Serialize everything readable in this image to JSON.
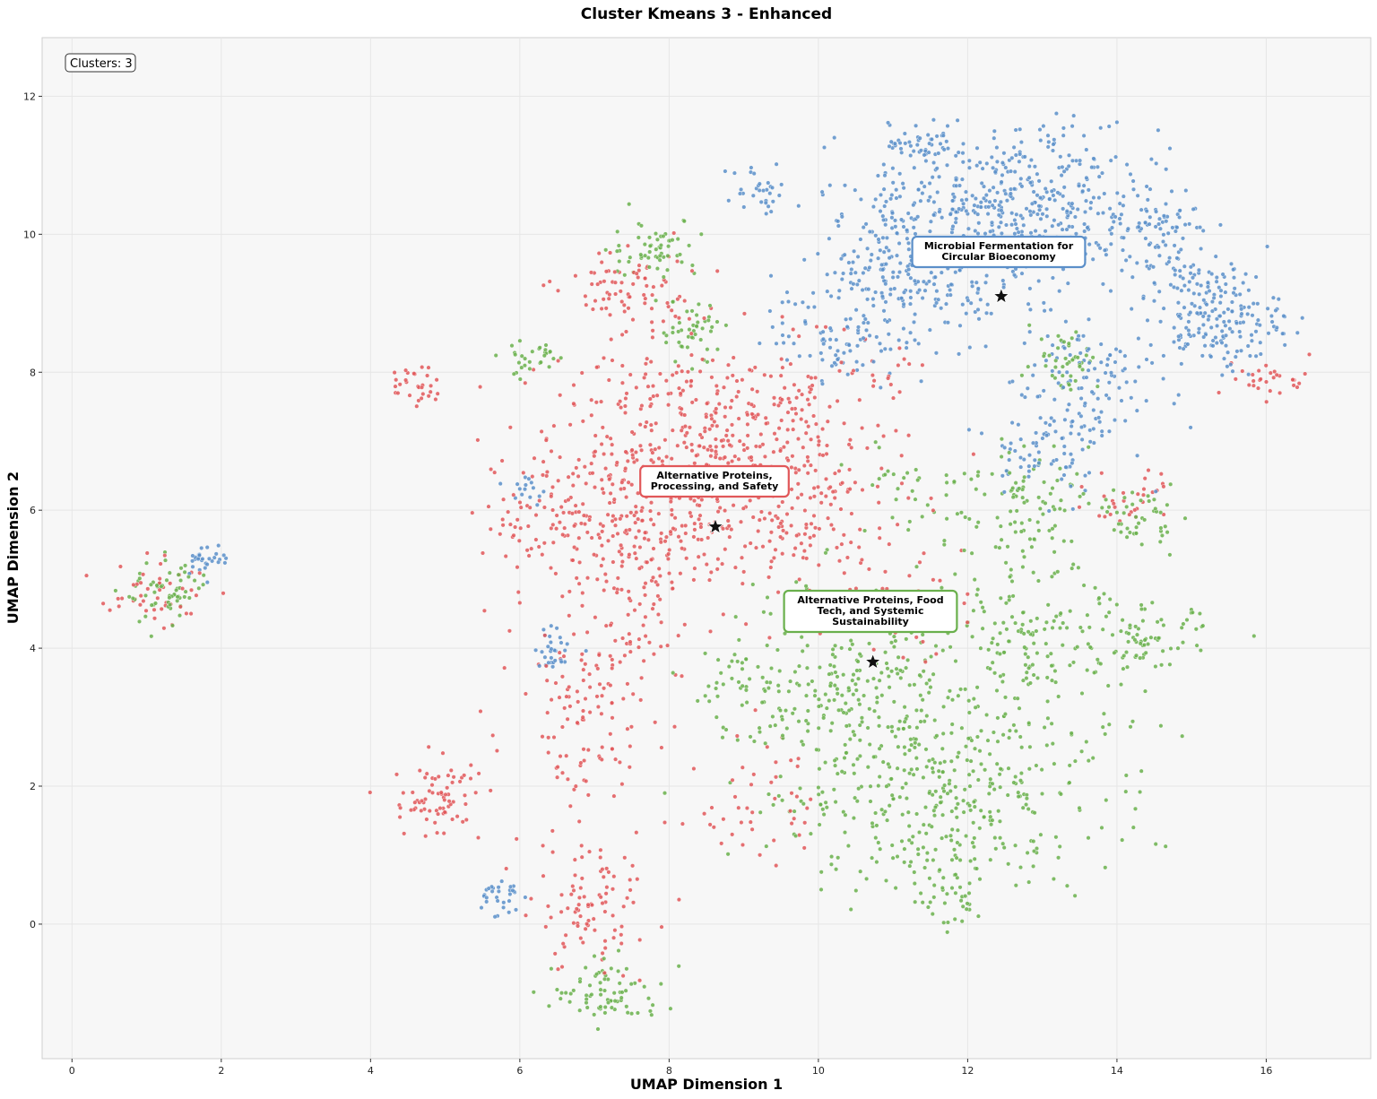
{
  "chart_data": {
    "type": "scatter",
    "title": "Cluster Kmeans 3 - Enhanced",
    "xlabel": "UMAP Dimension 1",
    "ylabel": "UMAP Dimension 2",
    "xlim": [
      -0.4,
      17.4
    ],
    "ylim": [
      -1.95,
      12.85
    ],
    "xticks": [
      "0",
      "2",
      "4",
      "6",
      "8",
      "10",
      "12",
      "14",
      "16"
    ],
    "yticks": [
      "0",
      "2",
      "4",
      "6",
      "8",
      "10",
      "12"
    ],
    "grid": true,
    "info_box": "Clusters: 3",
    "colors": {
      "red": "#e15759",
      "green": "#6ab04c",
      "blue": "#5b8fc9",
      "background": "#f7f7f7"
    },
    "series": [
      {
        "color": "#e15759",
        "centroid": [
          8.62,
          5.76
        ],
        "annotation": [
          "Alternative Proteins,",
          "Processing, and Safety"
        ],
        "regions": [
          [
            8.2,
            6.8,
            1.2,
            1.1,
            0.26
          ],
          [
            7.4,
            5.4,
            0.8,
            1.2,
            0.12
          ],
          [
            9.6,
            6.0,
            1.0,
            0.9,
            0.12
          ],
          [
            9.8,
            7.6,
            0.9,
            0.6,
            0.07
          ],
          [
            7.4,
            9.2,
            0.6,
            0.4,
            0.05
          ],
          [
            4.9,
            1.8,
            0.4,
            0.4,
            0.05
          ],
          [
            6.9,
            3.0,
            0.6,
            0.9,
            0.07
          ],
          [
            6.9,
            0.2,
            0.6,
            0.6,
            0.06
          ],
          [
            4.6,
            7.8,
            0.2,
            0.2,
            0.02
          ],
          [
            1.1,
            4.8,
            0.5,
            0.3,
            0.03
          ],
          [
            11.0,
            4.6,
            0.6,
            0.5,
            0.03
          ],
          [
            6.4,
            6.0,
            0.6,
            0.7,
            0.05
          ],
          [
            16.0,
            7.9,
            0.4,
            0.2,
            0.02
          ],
          [
            14.2,
            6.2,
            0.4,
            0.3,
            0.02
          ],
          [
            9.2,
            1.8,
            0.5,
            0.7,
            0.03
          ]
        ]
      },
      {
        "color": "#6ab04c",
        "centroid": [
          10.73,
          3.8
        ],
        "annotation": [
          "Alternative Proteins, Food",
          "Tech, and Systemic",
          "Sustainability"
        ],
        "regions": [
          [
            11.6,
            2.0,
            1.5,
            1.0,
            0.28
          ],
          [
            10.4,
            3.6,
            1.0,
            0.8,
            0.12
          ],
          [
            12.8,
            4.0,
            1.0,
            0.7,
            0.11
          ],
          [
            12.9,
            6.0,
            0.6,
            0.7,
            0.06
          ],
          [
            13.3,
            8.2,
            0.3,
            0.3,
            0.03
          ],
          [
            7.8,
            9.8,
            0.4,
            0.3,
            0.04
          ],
          [
            7.2,
            -1.0,
            0.5,
            0.3,
            0.05
          ],
          [
            1.3,
            4.8,
            0.4,
            0.3,
            0.04
          ],
          [
            14.3,
            5.9,
            0.3,
            0.3,
            0.03
          ],
          [
            8.3,
            8.6,
            0.3,
            0.3,
            0.03
          ],
          [
            14.5,
            4.1,
            0.5,
            0.3,
            0.04
          ],
          [
            9.0,
            3.4,
            0.5,
            0.5,
            0.03
          ],
          [
            11.8,
            0.4,
            0.4,
            0.4,
            0.03
          ],
          [
            6.2,
            8.2,
            0.3,
            0.2,
            0.02
          ],
          [
            11.4,
            6.2,
            0.8,
            0.6,
            0.03
          ]
        ]
      },
      {
        "color": "#5b8fc9",
        "centroid": [
          12.45,
          9.1
        ],
        "annotation": [
          "Microbial Fermentation for",
          "Circular Bioeconomy"
        ],
        "regions": [
          [
            12.6,
            10.3,
            1.3,
            0.8,
            0.36
          ],
          [
            11.2,
            9.4,
            0.8,
            0.8,
            0.14
          ],
          [
            15.3,
            8.8,
            0.6,
            0.5,
            0.13
          ],
          [
            13.5,
            7.8,
            0.6,
            0.8,
            0.08
          ],
          [
            14.6,
            9.9,
            0.4,
            0.5,
            0.05
          ],
          [
            11.4,
            11.3,
            0.3,
            0.2,
            0.03
          ],
          [
            10.2,
            8.6,
            0.6,
            0.5,
            0.05
          ],
          [
            1.8,
            5.3,
            0.2,
            0.15,
            0.02
          ],
          [
            6.5,
            4.0,
            0.2,
            0.2,
            0.02
          ],
          [
            9.2,
            10.6,
            0.3,
            0.3,
            0.02
          ],
          [
            12.9,
            6.9,
            0.4,
            0.4,
            0.04
          ],
          [
            5.7,
            0.4,
            0.2,
            0.2,
            0.02
          ],
          [
            6.1,
            6.3,
            0.2,
            0.2,
            0.01
          ]
        ]
      }
    ]
  }
}
